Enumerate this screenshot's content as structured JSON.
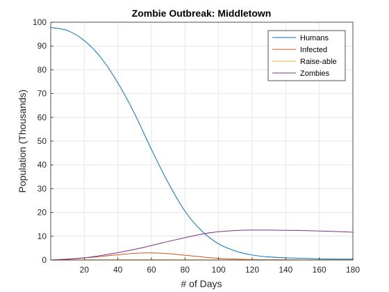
{
  "chart_data": {
    "type": "line",
    "title": "Zombie Outbreak: Middletown",
    "xlabel": "# of Days",
    "ylabel": "Population (Thousands)",
    "xlim": [
      0,
      180
    ],
    "ylim": [
      0,
      100
    ],
    "xticks": [
      "20",
      "40",
      "60",
      "80",
      "100",
      "120",
      "140",
      "160",
      "180"
    ],
    "yticks": [
      "0",
      "10",
      "20",
      "30",
      "40",
      "50",
      "60",
      "70",
      "80",
      "90",
      "100"
    ],
    "grid": true,
    "legend_position": "top-right",
    "x": [
      0,
      10,
      20,
      30,
      40,
      50,
      60,
      70,
      80,
      90,
      100,
      110,
      120,
      130,
      140,
      150,
      160,
      170,
      180
    ],
    "series": [
      {
        "name": "Humans",
        "color": "#0072BD",
        "values": [
          97.8,
          96.5,
          92.3,
          85.0,
          74.5,
          61.5,
          46.5,
          32.5,
          20.5,
          12.2,
          6.8,
          3.8,
          2.1,
          1.3,
          0.9,
          0.7,
          0.5,
          0.4,
          0.4
        ]
      },
      {
        "name": "Infected",
        "color": "#D95319",
        "values": [
          0,
          0.4,
          0.9,
          1.5,
          2.2,
          2.8,
          3.0,
          2.7,
          2.0,
          1.3,
          0.7,
          0.4,
          0.2,
          0.1,
          0.1,
          0.05,
          0.05,
          0.05,
          0.05
        ]
      },
      {
        "name": "Raise-able",
        "color": "#EDB120",
        "values": [
          0,
          0.02,
          0.05,
          0.08,
          0.1,
          0.12,
          0.12,
          0.1,
          0.08,
          0.06,
          0.04,
          0.03,
          0.02,
          0.02,
          0.01,
          0.01,
          0.01,
          0.01,
          0.01
        ]
      },
      {
        "name": "Zombies",
        "color": "#7E2F8E",
        "values": [
          0,
          0.3,
          0.9,
          1.9,
          3.1,
          4.5,
          6.1,
          7.8,
          9.4,
          10.9,
          11.9,
          12.4,
          12.6,
          12.6,
          12.5,
          12.4,
          12.2,
          12.0,
          11.7
        ]
      }
    ]
  }
}
